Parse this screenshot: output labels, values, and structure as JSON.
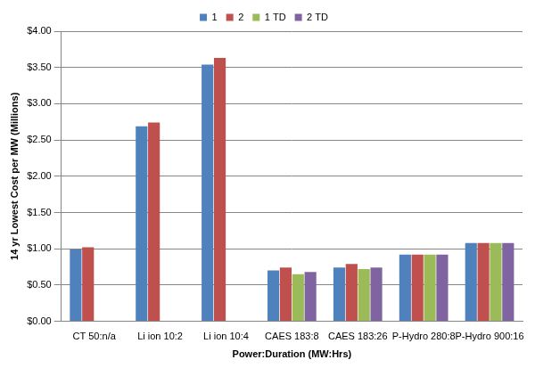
{
  "chart_data": {
    "type": "bar",
    "x_label": "Power:Duration (MW:Hrs)",
    "y_label": "14 yr Lowest Cost per MW (Millions)",
    "categories": [
      "CT 50:n/a",
      "Li ion 10:2",
      "Li ion 10:4",
      "CAES 183:8",
      "CAES 183:26",
      "P-Hydro 280:8",
      "P-Hydro 900:16"
    ],
    "series": [
      {
        "name": "1",
        "color": "#4f81bd",
        "values": [
          0.99,
          2.69,
          3.54,
          0.7,
          0.74,
          0.92,
          1.08
        ]
      },
      {
        "name": "2",
        "color": "#c0504d",
        "values": [
          1.02,
          2.74,
          3.63,
          0.74,
          0.79,
          0.92,
          1.08
        ]
      },
      {
        "name": "1 TD",
        "color": "#9bbb59",
        "values": [
          null,
          null,
          null,
          0.65,
          0.72,
          0.92,
          1.08
        ]
      },
      {
        "name": "2 TD",
        "color": "#8064a2",
        "values": [
          null,
          null,
          null,
          0.68,
          0.74,
          0.92,
          1.08
        ]
      }
    ],
    "ylim": [
      0,
      4
    ],
    "yticks": [
      {
        "value": 0,
        "label": "$0.00"
      },
      {
        "value": 0.5,
        "label": "$0.50"
      },
      {
        "value": 1,
        "label": "$1.00"
      },
      {
        "value": 1.5,
        "label": "$1.50"
      },
      {
        "value": 2,
        "label": "$2.00"
      },
      {
        "value": 2.5,
        "label": "$2.50"
      },
      {
        "value": 3,
        "label": "$3.00"
      },
      {
        "value": 3.5,
        "label": "$3.50"
      },
      {
        "value": 4,
        "label": "$4.00"
      }
    ],
    "grid": true,
    "legend": "top"
  }
}
